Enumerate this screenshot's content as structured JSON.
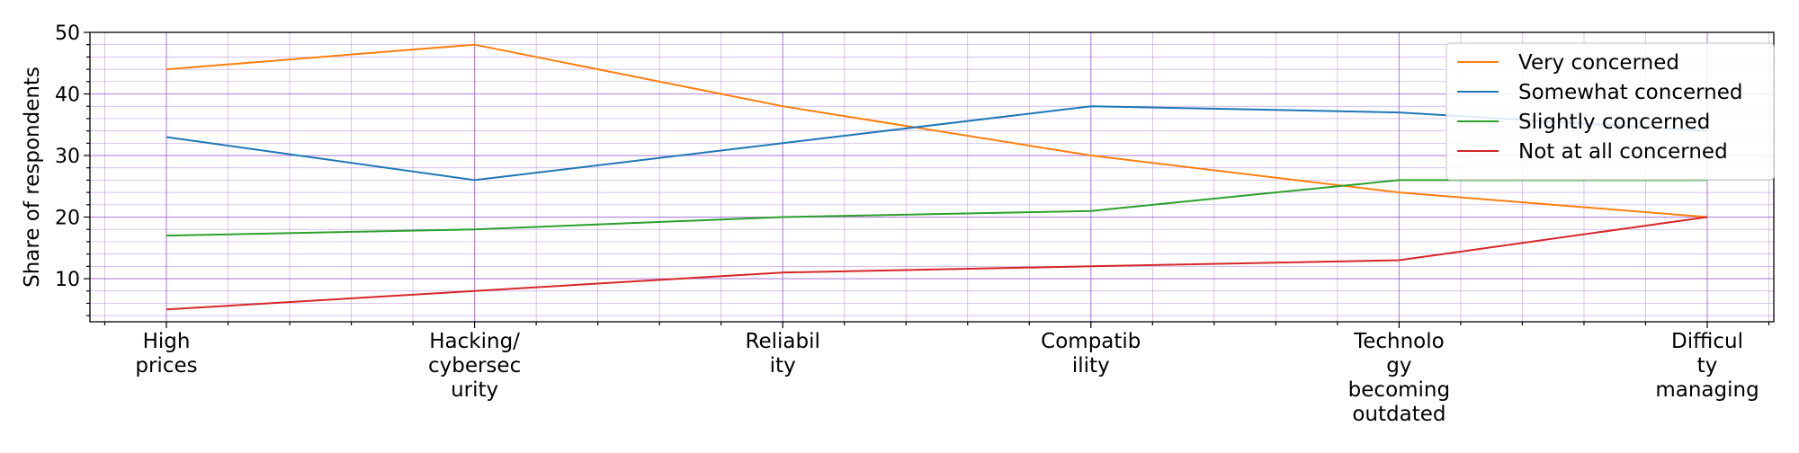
{
  "chart_data": {
    "type": "line",
    "ylabel": "Share of respondents",
    "xlabel": "",
    "ylim": [
      3,
      50
    ],
    "yticks": [
      10,
      20,
      30,
      40,
      50
    ],
    "grid": true,
    "legend_position": "top-right",
    "categories": [
      [
        "High",
        "prices"
      ],
      [
        "Hacking/",
        "cybersec",
        "urity"
      ],
      [
        "Reliabil",
        "ity"
      ],
      [
        "Compatib",
        "ility"
      ],
      [
        "Technolo",
        "gy",
        "becoming",
        "outdated"
      ],
      [
        "Difficul",
        "ty",
        "managing"
      ]
    ],
    "series": [
      {
        "name": "Very concerned",
        "color": "#ff7f0e",
        "values": [
          44,
          48,
          38,
          30,
          24,
          20
        ]
      },
      {
        "name": "Somewhat concerned",
        "color": "#1f77b4",
        "values": [
          33,
          26,
          32,
          38,
          37,
          34
        ]
      },
      {
        "name": "Slightly concerned",
        "color": "#2ca02c",
        "values": [
          17,
          18,
          20,
          21,
          26,
          26
        ]
      },
      {
        "name": "Not at all concerned",
        "color": "#d62728",
        "values": [
          5,
          8,
          11,
          12,
          13,
          20
        ]
      }
    ],
    "grid_color": "#9b59d0"
  }
}
